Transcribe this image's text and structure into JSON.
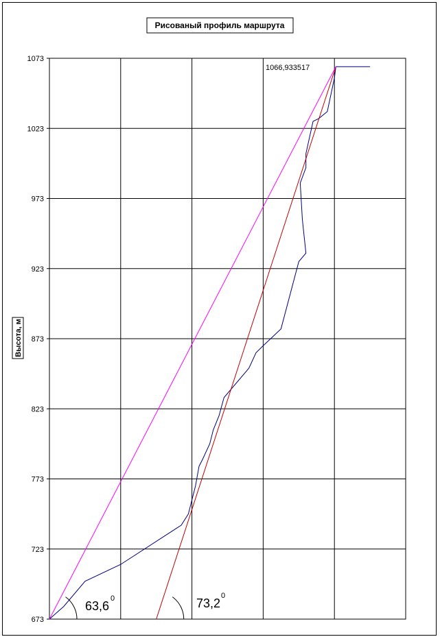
{
  "chart_data": {
    "type": "line",
    "title": "Рисованый профиль маршрута",
    "ylabel": "Высота, м",
    "ylim": [
      673,
      1073
    ],
    "yticks": [
      673,
      723,
      773,
      823,
      873,
      923,
      973,
      1023,
      1073
    ],
    "xlim": [
      0,
      5
    ],
    "x_gridlines": [
      1,
      2,
      3,
      4,
      5
    ],
    "grid": true,
    "series": [
      {
        "color": "#000080",
        "points": [
          [
            0,
            673
          ],
          [
            0.2,
            682
          ],
          [
            0.5,
            700
          ],
          [
            1.0,
            712
          ],
          [
            1.85,
            740
          ],
          [
            1.95,
            748
          ],
          [
            2.0,
            758
          ],
          [
            2.05,
            768
          ],
          [
            2.1,
            782
          ],
          [
            2.15,
            787
          ],
          [
            2.25,
            798
          ],
          [
            2.3,
            808
          ],
          [
            2.38,
            818
          ],
          [
            2.45,
            831
          ],
          [
            2.8,
            852
          ],
          [
            2.9,
            863
          ],
          [
            3.0,
            868
          ],
          [
            3.25,
            880
          ],
          [
            3.5,
            928
          ],
          [
            3.6,
            934
          ],
          [
            3.55,
            958
          ],
          [
            3.52,
            984
          ],
          [
            3.6,
            995
          ],
          [
            3.6,
            1005
          ],
          [
            3.7,
            1028
          ],
          [
            3.78,
            1030
          ],
          [
            3.9,
            1035
          ],
          [
            4.0,
            1059
          ],
          [
            4.02,
            1067
          ],
          [
            4.5,
            1067
          ]
        ]
      },
      {
        "color": "#c00000",
        "points": [
          [
            1.5,
            673
          ],
          [
            4.02,
            1067
          ]
        ]
      },
      {
        "color": "#ff00ff",
        "points": [
          [
            0,
            673
          ],
          [
            4.02,
            1067
          ]
        ]
      }
    ],
    "annotations": [
      {
        "text": "1066,933517",
        "x": 3.05,
        "y": 1075
      },
      {
        "text": "63,6",
        "degree": "0"
      },
      {
        "text": "73,2",
        "degree": "0"
      }
    ]
  }
}
